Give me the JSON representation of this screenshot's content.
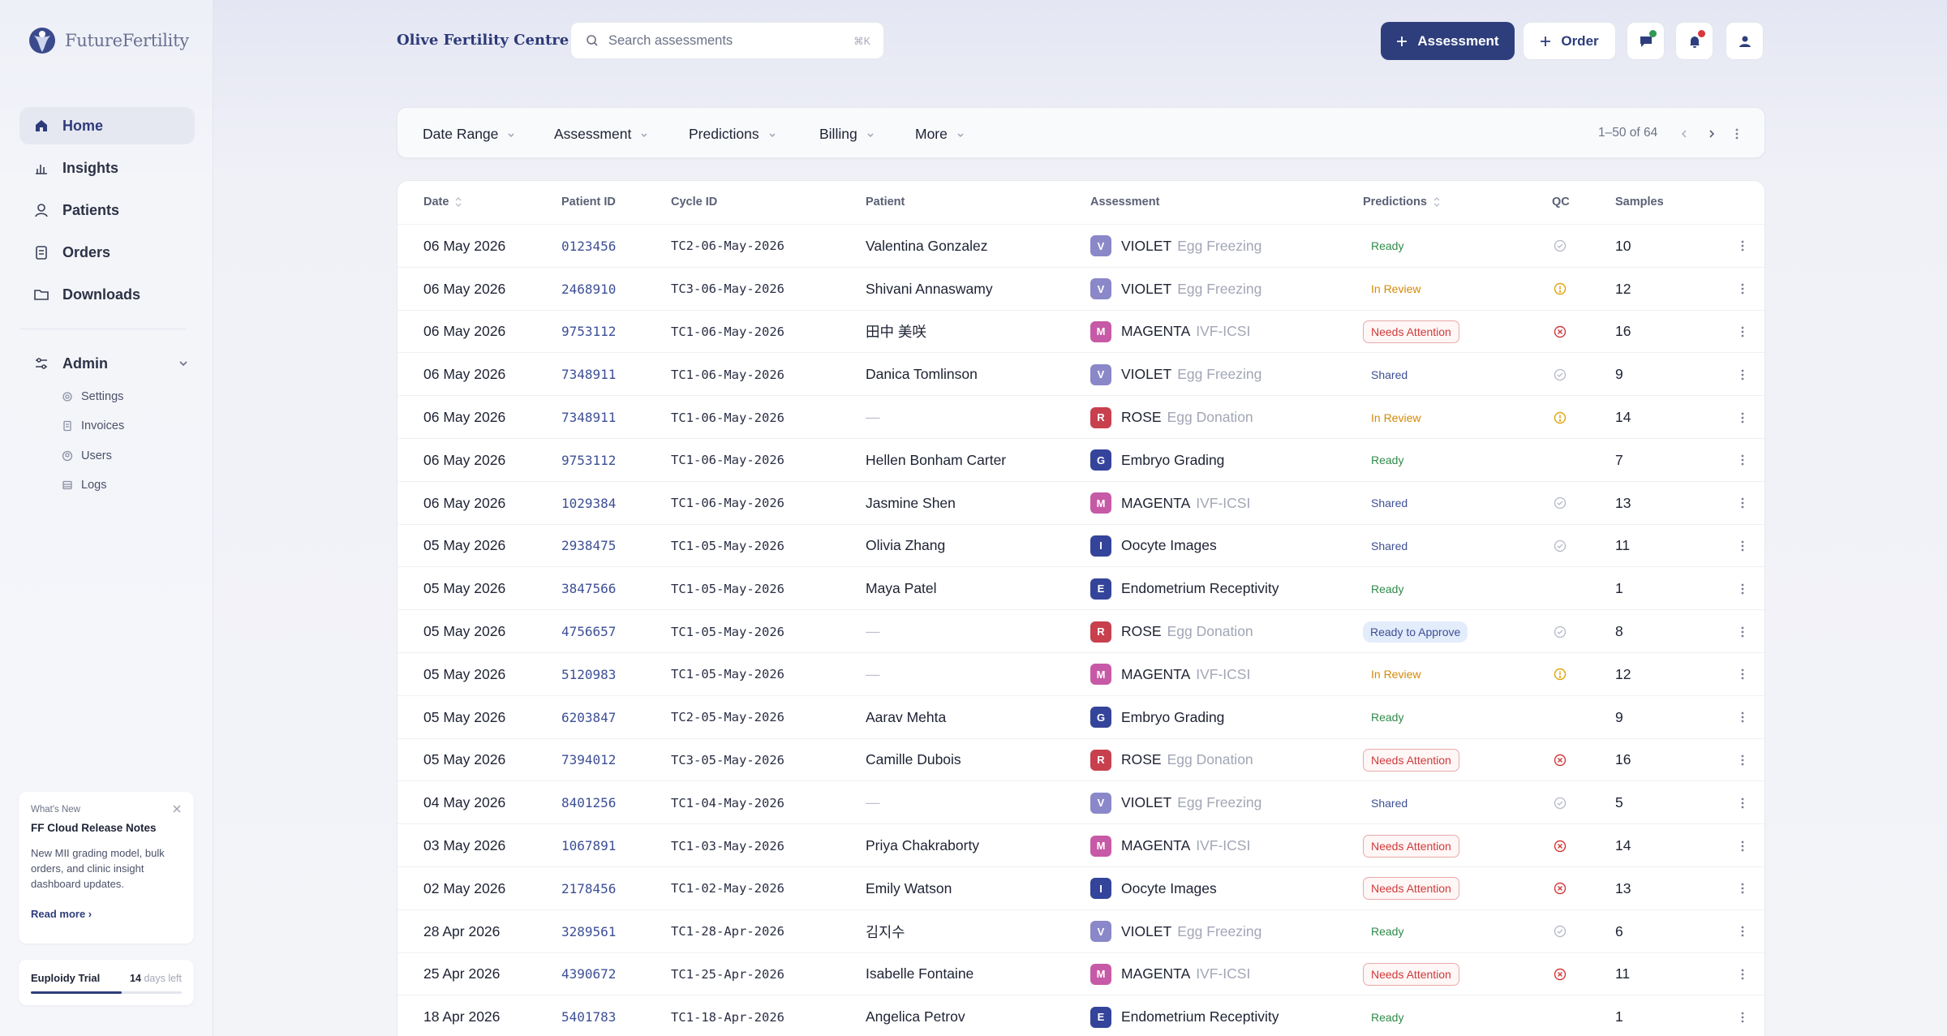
{
  "brand": {
    "name": "FutureFertility"
  },
  "sidebar": {
    "items": [
      {
        "label": "Home",
        "icon": "home-icon",
        "active": true
      },
      {
        "label": "Insights",
        "icon": "bar-chart-icon"
      },
      {
        "label": "Patients",
        "icon": "user-icon"
      },
      {
        "label": "Orders",
        "icon": "clipboard-icon"
      },
      {
        "label": "Downloads",
        "icon": "folder-icon"
      }
    ],
    "admin": {
      "label": "Admin",
      "items": [
        {
          "label": "Settings",
          "icon": "gear-icon"
        },
        {
          "label": "Invoices",
          "icon": "document-icon"
        },
        {
          "label": "Users",
          "icon": "users-icon"
        },
        {
          "label": "Logs",
          "icon": "log-icon"
        }
      ]
    },
    "whats_new": {
      "kicker": "What's New",
      "title": "FF Cloud Release Notes",
      "body": "New MII grading model, bulk orders, and clinic insight dashboard updates.",
      "link": "Read more ›"
    },
    "trial": {
      "label": "Euploidy Trial",
      "days": "14",
      "days_suffix": "days left",
      "progress": 0.6
    }
  },
  "header": {
    "clinic": "Olive Fertility Centre",
    "search_placeholder": "Search assessments",
    "search_shortcut": "⌘K",
    "assessment_button": "Assessment",
    "order_button": "Order",
    "colors": {
      "primary": "#2e3e7c",
      "chat_dot": "#2f9a56",
      "bell_dot": "#d9363e"
    }
  },
  "filters": {
    "items": [
      "Date Range",
      "Assessment",
      "Predictions",
      "Billing",
      "More"
    ],
    "pagination": "1–50 of 64"
  },
  "table": {
    "headers": {
      "date": "Date",
      "patient_id": "Patient ID",
      "cycle_id": "Cycle ID",
      "patient": "Patient",
      "assessment": "Assessment",
      "predictions": "Predictions",
      "qc": "QC",
      "samples": "Samples"
    },
    "rows": [
      {
        "date": "06 May 2026",
        "pid": "0123456",
        "cycle": "TC2-06-May-2026",
        "patient": "Valentina Gonzalez",
        "letter": "V",
        "aname": "VIOLET",
        "asub": "Egg Freezing",
        "pred": "Ready",
        "qc": "ok",
        "samples": "10"
      },
      {
        "date": "06 May 2026",
        "pid": "2468910",
        "cycle": "TC3-06-May-2026",
        "patient": "Shivani Annaswamy",
        "letter": "V",
        "aname": "VIOLET",
        "asub": "Egg Freezing",
        "pred": "In Review",
        "qc": "warn",
        "samples": "12"
      },
      {
        "date": "06 May 2026",
        "pid": "9753112",
        "cycle": "TC1-06-May-2026",
        "patient": "田中 美咲",
        "letter": "M",
        "aname": "MAGENTA",
        "asub": "IVF-ICSI",
        "pred": "Needs Attention",
        "qc": "err",
        "samples": "16"
      },
      {
        "date": "06 May 2026",
        "pid": "7348911",
        "cycle": "TC1-06-May-2026",
        "patient": "Danica Tomlinson",
        "letter": "V",
        "aname": "VIOLET",
        "asub": "Egg Freezing",
        "pred": "Shared",
        "qc": "ok",
        "samples": "9"
      },
      {
        "date": "06 May 2026",
        "pid": "7348911",
        "cycle": "TC1-06-May-2026",
        "patient": "—",
        "letter": "R",
        "aname": "ROSE",
        "asub": "Egg Donation",
        "pred": "In Review",
        "qc": "warn",
        "samples": "14"
      },
      {
        "date": "06 May 2026",
        "pid": "9753112",
        "cycle": "TC1-06-May-2026",
        "patient": "Hellen Bonham Carter",
        "letter": "G",
        "aname": "Embryo Grading",
        "asub": "",
        "pred": "Ready",
        "qc": "none",
        "samples": "7"
      },
      {
        "date": "06 May 2026",
        "pid": "1029384",
        "cycle": "TC1-06-May-2026",
        "patient": "Jasmine Shen",
        "letter": "M",
        "aname": "MAGENTA",
        "asub": "IVF-ICSI",
        "pred": "Shared",
        "qc": "ok",
        "samples": "13"
      },
      {
        "date": "05 May 2026",
        "pid": "2938475",
        "cycle": "TC1-05-May-2026",
        "patient": "Olivia Zhang",
        "letter": "I",
        "aname": "Oocyte Images",
        "asub": "",
        "pred": "Shared",
        "qc": "ok",
        "samples": "11"
      },
      {
        "date": "05 May 2026",
        "pid": "3847566",
        "cycle": "TC1-05-May-2026",
        "patient": "Maya Patel",
        "letter": "E",
        "aname": "Endometrium Receptivity",
        "asub": "",
        "pred": "Ready",
        "qc": "none",
        "samples": "1"
      },
      {
        "date": "05 May 2026",
        "pid": "4756657",
        "cycle": "TC1-05-May-2026",
        "patient": "—",
        "letter": "R",
        "aname": "ROSE",
        "asub": "Egg Donation",
        "pred": "Ready to Approve",
        "qc": "ok",
        "samples": "8"
      },
      {
        "date": "05 May 2026",
        "pid": "5120983",
        "cycle": "TC1-05-May-2026",
        "patient": "—",
        "letter": "M",
        "aname": "MAGENTA",
        "asub": "IVF-ICSI",
        "pred": "In Review",
        "qc": "warn",
        "samples": "12"
      },
      {
        "date": "05 May 2026",
        "pid": "6203847",
        "cycle": "TC2-05-May-2026",
        "patient": "Aarav Mehta",
        "letter": "G",
        "aname": "Embryo Grading",
        "asub": "",
        "pred": "Ready",
        "qc": "none",
        "samples": "9"
      },
      {
        "date": "05 May 2026",
        "pid": "7394012",
        "cycle": "TC3-05-May-2026",
        "patient": "Camille Dubois",
        "letter": "R",
        "aname": "ROSE",
        "asub": "Egg Donation",
        "pred": "Needs Attention",
        "qc": "err",
        "samples": "16"
      },
      {
        "date": "04 May 2026",
        "pid": "8401256",
        "cycle": "TC1-04-May-2026",
        "patient": "—",
        "letter": "V",
        "aname": "VIOLET",
        "asub": "Egg Freezing",
        "pred": "Shared",
        "qc": "ok",
        "samples": "5"
      },
      {
        "date": "03 May 2026",
        "pid": "1067891",
        "cycle": "TC1-03-May-2026",
        "patient": "Priya Chakraborty",
        "letter": "M",
        "aname": "MAGENTA",
        "asub": "IVF-ICSI",
        "pred": "Needs Attention",
        "qc": "err",
        "samples": "14"
      },
      {
        "date": "02 May 2026",
        "pid": "2178456",
        "cycle": "TC1-02-May-2026",
        "patient": "Emily Watson",
        "letter": "I",
        "aname": "Oocyte Images",
        "asub": "",
        "pred": "Needs Attention",
        "qc": "err",
        "samples": "13"
      },
      {
        "date": "28 Apr 2026",
        "pid": "3289561",
        "cycle": "TC1-28-Apr-2026",
        "patient": "김지수",
        "letter": "V",
        "aname": "VIOLET",
        "asub": "Egg Freezing",
        "pred": "Ready",
        "qc": "ok",
        "samples": "6"
      },
      {
        "date": "25 Apr 2026",
        "pid": "4390672",
        "cycle": "TC1-25-Apr-2026",
        "patient": "Isabelle Fontaine",
        "letter": "M",
        "aname": "MAGENTA",
        "asub": "IVF-ICSI",
        "pred": "Needs Attention",
        "qc": "err",
        "samples": "11"
      },
      {
        "date": "18 Apr 2026",
        "pid": "5401783",
        "cycle": "TC1-18-Apr-2026",
        "patient": "Angelica Petrov",
        "letter": "E",
        "aname": "Endometrium Receptivity",
        "asub": "",
        "pred": "Ready",
        "qc": "none",
        "samples": "1"
      }
    ]
  },
  "chip_colors": {
    "V": "#8a88c8",
    "M": "#c65aa6",
    "R": "#c8404e",
    "G": "#34449a",
    "I": "#34449a",
    "E": "#34449a"
  }
}
